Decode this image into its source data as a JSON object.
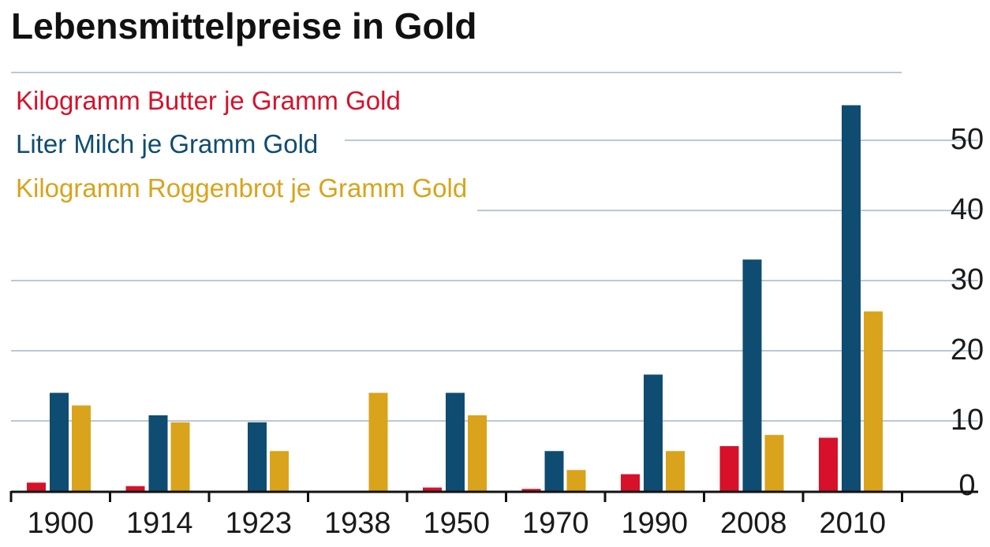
{
  "chart_data": {
    "type": "bar",
    "title": "Lebensmittelpreise in Gold",
    "categories": [
      "1900",
      "1914",
      "1923",
      "1938",
      "1950",
      "1970",
      "1990",
      "2008",
      "2010"
    ],
    "series": [
      {
        "name": "Kilogramm Butter je Gramm Gold",
        "color": "#d7112a",
        "values": [
          1.2,
          0.7,
          0,
          0,
          0.5,
          0.3,
          2.4,
          6.4,
          7.6
        ]
      },
      {
        "name": "Liter Milch je Gramm Gold",
        "color": "#0f4c72",
        "values": [
          14,
          10.8,
          9.8,
          0,
          14,
          5.7,
          16.6,
          33,
          55
        ]
      },
      {
        "name": "Kilogramm Roggenbrot je Gramm Gold",
        "color": "#d9a31b",
        "values": [
          12.2,
          9.8,
          5.7,
          14,
          10.8,
          3,
          5.7,
          8,
          25.6
        ]
      }
    ],
    "y_ticks": [
      "0",
      "10",
      "20",
      "30",
      "40",
      "50"
    ],
    "ylim": [
      0,
      60
    ],
    "grid": true,
    "legend_position": "top-left",
    "xlabel": "",
    "ylabel": ""
  }
}
